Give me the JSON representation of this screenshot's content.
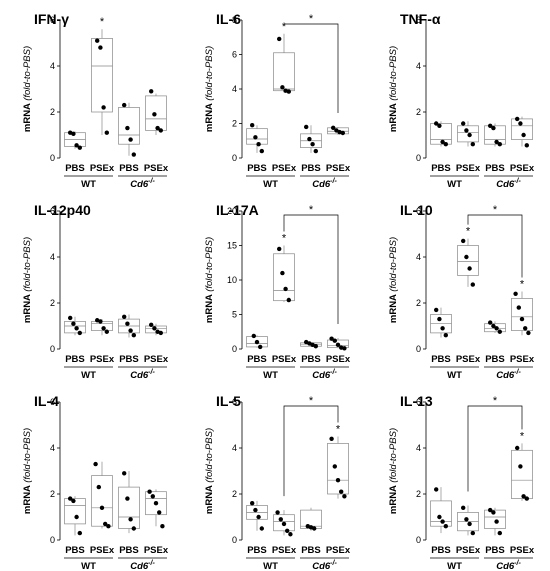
{
  "figure": {
    "ylabel_main": "mRNA",
    "ylabel_unit": "(fold-to-PBS)",
    "groups": [
      "WT",
      "Cd6",
      "-/-"
    ],
    "conditions": [
      "PBS",
      "PSEx",
      "PBS",
      "PSEx"
    ],
    "sig_star": "*"
  },
  "chart_data": [
    {
      "type": "box",
      "title": "IFN-γ",
      "ylim": [
        0,
        6
      ],
      "yticks": [
        "0",
        "2",
        "4",
        "6"
      ],
      "categories": [
        "PBS",
        "PSEx",
        "PBS",
        "PSEx"
      ],
      "boxes": [
        {
          "q1": 0.5,
          "median": 0.8,
          "q3": 1.1,
          "min": 0.4,
          "max": 1.15,
          "points": [
            1.1,
            1.05,
            0.55,
            0.45
          ]
        },
        {
          "q1": 2.0,
          "median": 4.0,
          "q3": 5.2,
          "min": 1.0,
          "max": 5.6,
          "points": [
            5.1,
            4.8,
            2.2,
            1.1
          ]
        },
        {
          "q1": 0.6,
          "median": 1.0,
          "q3": 2.2,
          "min": 0.1,
          "max": 2.4,
          "points": [
            2.3,
            1.3,
            0.8,
            0.15
          ]
        },
        {
          "q1": 1.2,
          "median": 1.7,
          "q3": 2.7,
          "min": 1.0,
          "max": 2.8,
          "points": [
            2.9,
            1.9,
            1.3,
            1.2
          ]
        }
      ],
      "stars": [
        {
          "over": 1
        }
      ],
      "brackets": []
    },
    {
      "type": "box",
      "title": "IL-6",
      "ylim": [
        0,
        8
      ],
      "yticks": [
        "0",
        "2",
        "4",
        "6",
        "8"
      ],
      "categories": [
        "PBS",
        "PSEx",
        "PBS",
        "PSEx"
      ],
      "boxes": [
        {
          "q1": 0.8,
          "median": 1.1,
          "q3": 1.7,
          "min": 0.3,
          "max": 1.9,
          "points": [
            1.9,
            1.2,
            0.8,
            0.4
          ]
        },
        {
          "q1": 3.9,
          "median": 4.0,
          "q3": 6.1,
          "min": 3.8,
          "max": 7.2,
          "points": [
            6.9,
            4.1,
            3.9,
            3.85
          ]
        },
        {
          "q1": 0.6,
          "median": 1.0,
          "q3": 1.4,
          "min": 0.3,
          "max": 1.9,
          "points": [
            1.8,
            1.1,
            0.8,
            0.4
          ]
        },
        {
          "q1": 1.4,
          "median": 1.55,
          "q3": 1.75,
          "min": 1.35,
          "max": 1.8,
          "points": [
            1.75,
            1.6,
            1.5,
            1.45
          ]
        }
      ],
      "stars": [
        {
          "over": 1
        }
      ],
      "brackets": [
        {
          "from": 1,
          "to": 3
        }
      ]
    },
    {
      "type": "box",
      "title": "TNF-α",
      "ylim": [
        0,
        6
      ],
      "yticks": [
        "0",
        "2",
        "4",
        "6"
      ],
      "categories": [
        "PBS",
        "PSEx",
        "PBS",
        "PSEx"
      ],
      "boxes": [
        {
          "q1": 0.6,
          "median": 0.8,
          "q3": 1.5,
          "min": 0.5,
          "max": 1.6,
          "points": [
            1.5,
            1.4,
            0.7,
            0.6
          ]
        },
        {
          "q1": 0.7,
          "median": 1.1,
          "q3": 1.4,
          "min": 0.5,
          "max": 1.6,
          "points": [
            1.5,
            1.2,
            1.0,
            0.6
          ]
        },
        {
          "q1": 0.6,
          "median": 0.8,
          "q3": 1.4,
          "min": 0.5,
          "max": 1.5,
          "points": [
            1.4,
            1.3,
            0.7,
            0.6
          ]
        },
        {
          "q1": 0.8,
          "median": 1.4,
          "q3": 1.7,
          "min": 0.5,
          "max": 1.8,
          "points": [
            1.7,
            1.5,
            1.0,
            0.55
          ]
        }
      ],
      "stars": [],
      "brackets": []
    },
    {
      "type": "box",
      "title": "IL-12p40",
      "ylim": [
        0,
        6
      ],
      "yticks": [
        "0",
        "2",
        "4",
        "6"
      ],
      "categories": [
        "PBS",
        "PSEx",
        "PBS",
        "PSEx"
      ],
      "boxes": [
        {
          "q1": 0.7,
          "median": 1.0,
          "q3": 1.2,
          "min": 0.6,
          "max": 1.4,
          "points": [
            1.35,
            1.1,
            0.9,
            0.7
          ]
        },
        {
          "q1": 0.8,
          "median": 1.1,
          "q3": 1.2,
          "min": 0.6,
          "max": 1.3,
          "points": [
            1.25,
            1.2,
            0.9,
            0.75
          ]
        },
        {
          "q1": 0.7,
          "median": 1.0,
          "q3": 1.3,
          "min": 0.5,
          "max": 1.5,
          "points": [
            1.4,
            1.1,
            0.8,
            0.6
          ]
        },
        {
          "q1": 0.7,
          "median": 0.9,
          "q3": 1.0,
          "min": 0.6,
          "max": 1.1,
          "points": [
            1.05,
            0.9,
            0.75,
            0.7
          ]
        }
      ],
      "stars": [],
      "brackets": []
    },
    {
      "type": "box",
      "title": "IL-17A",
      "ylim": [
        0,
        20
      ],
      "yticks": [
        "0",
        "5",
        "10",
        "15",
        "20"
      ],
      "categories": [
        "PBS",
        "PSEx",
        "PBS",
        "PSEx"
      ],
      "boxes": [
        {
          "q1": 0.3,
          "median": 0.8,
          "q3": 1.8,
          "min": 0.2,
          "max": 2.0,
          "points": [
            1.9,
            1.0,
            0.3
          ]
        },
        {
          "q1": 7.0,
          "median": 8.5,
          "q3": 13.8,
          "min": 6.8,
          "max": 15.0,
          "points": [
            14.5,
            11.0,
            8.7,
            7.1
          ]
        },
        {
          "q1": 0.4,
          "median": 0.7,
          "q3": 0.9,
          "min": 0.3,
          "max": 1.0,
          "points": [
            1.0,
            0.8,
            0.6,
            0.4
          ]
        },
        {
          "q1": 0.2,
          "median": 0.5,
          "q3": 1.3,
          "min": 0.1,
          "max": 1.6,
          "points": [
            1.5,
            1.2,
            0.6,
            0.2,
            0.1
          ]
        }
      ],
      "stars": [
        {
          "over": 1
        }
      ],
      "brackets": [
        {
          "from": 1,
          "to": 3
        }
      ]
    },
    {
      "type": "box",
      "title": "IL-10",
      "ylim": [
        0,
        6
      ],
      "yticks": [
        "0",
        "2",
        "4",
        "6"
      ],
      "categories": [
        "PBS",
        "PSEx",
        "PBS",
        "PSEx"
      ],
      "boxes": [
        {
          "q1": 0.7,
          "median": 1.1,
          "q3": 1.5,
          "min": 0.5,
          "max": 1.8,
          "points": [
            1.7,
            1.3,
            0.9,
            0.6
          ]
        },
        {
          "q1": 3.2,
          "median": 3.8,
          "q3": 4.5,
          "min": 2.7,
          "max": 4.8,
          "points": [
            4.7,
            4.0,
            3.5,
            2.8
          ]
        },
        {
          "q1": 0.75,
          "median": 0.9,
          "q3": 1.1,
          "min": 0.7,
          "max": 1.2,
          "points": [
            1.15,
            1.0,
            0.9,
            0.75
          ]
        },
        {
          "q1": 0.8,
          "median": 1.4,
          "q3": 2.2,
          "min": 0.6,
          "max": 2.5,
          "points": [
            2.4,
            1.8,
            1.3,
            0.9,
            0.7
          ]
        }
      ],
      "stars": [
        {
          "over": 1
        },
        {
          "over": 3
        }
      ],
      "brackets": [
        {
          "from": 1,
          "to": 3
        }
      ]
    },
    {
      "type": "box",
      "title": "IL-4",
      "ylim": [
        0,
        6
      ],
      "yticks": [
        "0",
        "2",
        "4",
        "6"
      ],
      "categories": [
        "PBS",
        "PSEx",
        "PBS",
        "PSEx"
      ],
      "boxes": [
        {
          "q1": 0.7,
          "median": 1.5,
          "q3": 1.8,
          "min": 0.2,
          "max": 1.9,
          "points": [
            1.8,
            1.7,
            1.0,
            0.3
          ]
        },
        {
          "q1": 0.6,
          "median": 1.4,
          "q3": 2.8,
          "min": 0.5,
          "max": 3.4,
          "points": [
            3.3,
            2.3,
            1.4,
            0.7,
            0.6
          ]
        },
        {
          "q1": 0.5,
          "median": 1.0,
          "q3": 2.3,
          "min": 0.3,
          "max": 3.0,
          "points": [
            2.9,
            1.8,
            0.9,
            0.5
          ]
        },
        {
          "q1": 1.1,
          "median": 1.8,
          "q3": 2.1,
          "min": 0.6,
          "max": 2.2,
          "points": [
            2.1,
            1.9,
            1.6,
            1.2,
            0.6
          ]
        }
      ],
      "stars": [],
      "brackets": []
    },
    {
      "type": "box",
      "title": "IL-5",
      "ylim": [
        0,
        6
      ],
      "yticks": [
        "0",
        "2",
        "4",
        "6"
      ],
      "categories": [
        "PBS",
        "PSEx",
        "PBS",
        "PSEx"
      ],
      "boxes": [
        {
          "q1": 0.9,
          "median": 1.2,
          "q3": 1.5,
          "min": 0.4,
          "max": 1.7,
          "points": [
            1.6,
            1.3,
            1.0,
            0.5
          ]
        },
        {
          "q1": 0.4,
          "median": 0.8,
          "q3": 1.1,
          "min": 0.2,
          "max": 1.3,
          "points": [
            1.2,
            0.9,
            0.7,
            0.4,
            0.25
          ]
        },
        {
          "q1": 0.5,
          "median": 0.6,
          "q3": 1.3,
          "min": 0.4,
          "max": 1.4,
          "points": [
            0.6,
            0.55,
            0.5
          ]
        },
        {
          "q1": 2.0,
          "median": 2.6,
          "q3": 4.2,
          "min": 1.8,
          "max": 4.5,
          "points": [
            4.4,
            3.2,
            2.6,
            2.1,
            1.9
          ]
        }
      ],
      "stars": [
        {
          "over": 3
        }
      ],
      "brackets": [
        {
          "from": 1,
          "to": 3
        }
      ]
    },
    {
      "type": "box",
      "title": "IL-13",
      "ylim": [
        0,
        6
      ],
      "yticks": [
        "0",
        "2",
        "4",
        "6"
      ],
      "categories": [
        "PBS",
        "PSEx",
        "PBS",
        "PSEx"
      ],
      "boxes": [
        {
          "q1": 0.6,
          "median": 0.8,
          "q3": 1.7,
          "min": 0.3,
          "max": 2.3,
          "points": [
            2.2,
            1.0,
            0.8,
            0.6
          ]
        },
        {
          "q1": 0.4,
          "median": 0.8,
          "q3": 1.2,
          "min": 0.2,
          "max": 1.5,
          "points": [
            1.4,
            0.9,
            0.7,
            0.3
          ]
        },
        {
          "q1": 0.5,
          "median": 1.0,
          "q3": 1.3,
          "min": 0.2,
          "max": 1.4,
          "points": [
            1.3,
            1.2,
            0.8,
            0.3
          ]
        },
        {
          "q1": 1.8,
          "median": 2.6,
          "q3": 3.9,
          "min": 1.7,
          "max": 4.2,
          "points": [
            4.0,
            3.2,
            1.9,
            1.8
          ]
        }
      ],
      "stars": [
        {
          "over": 3
        }
      ],
      "brackets": [
        {
          "from": 1,
          "to": 3
        }
      ]
    }
  ]
}
